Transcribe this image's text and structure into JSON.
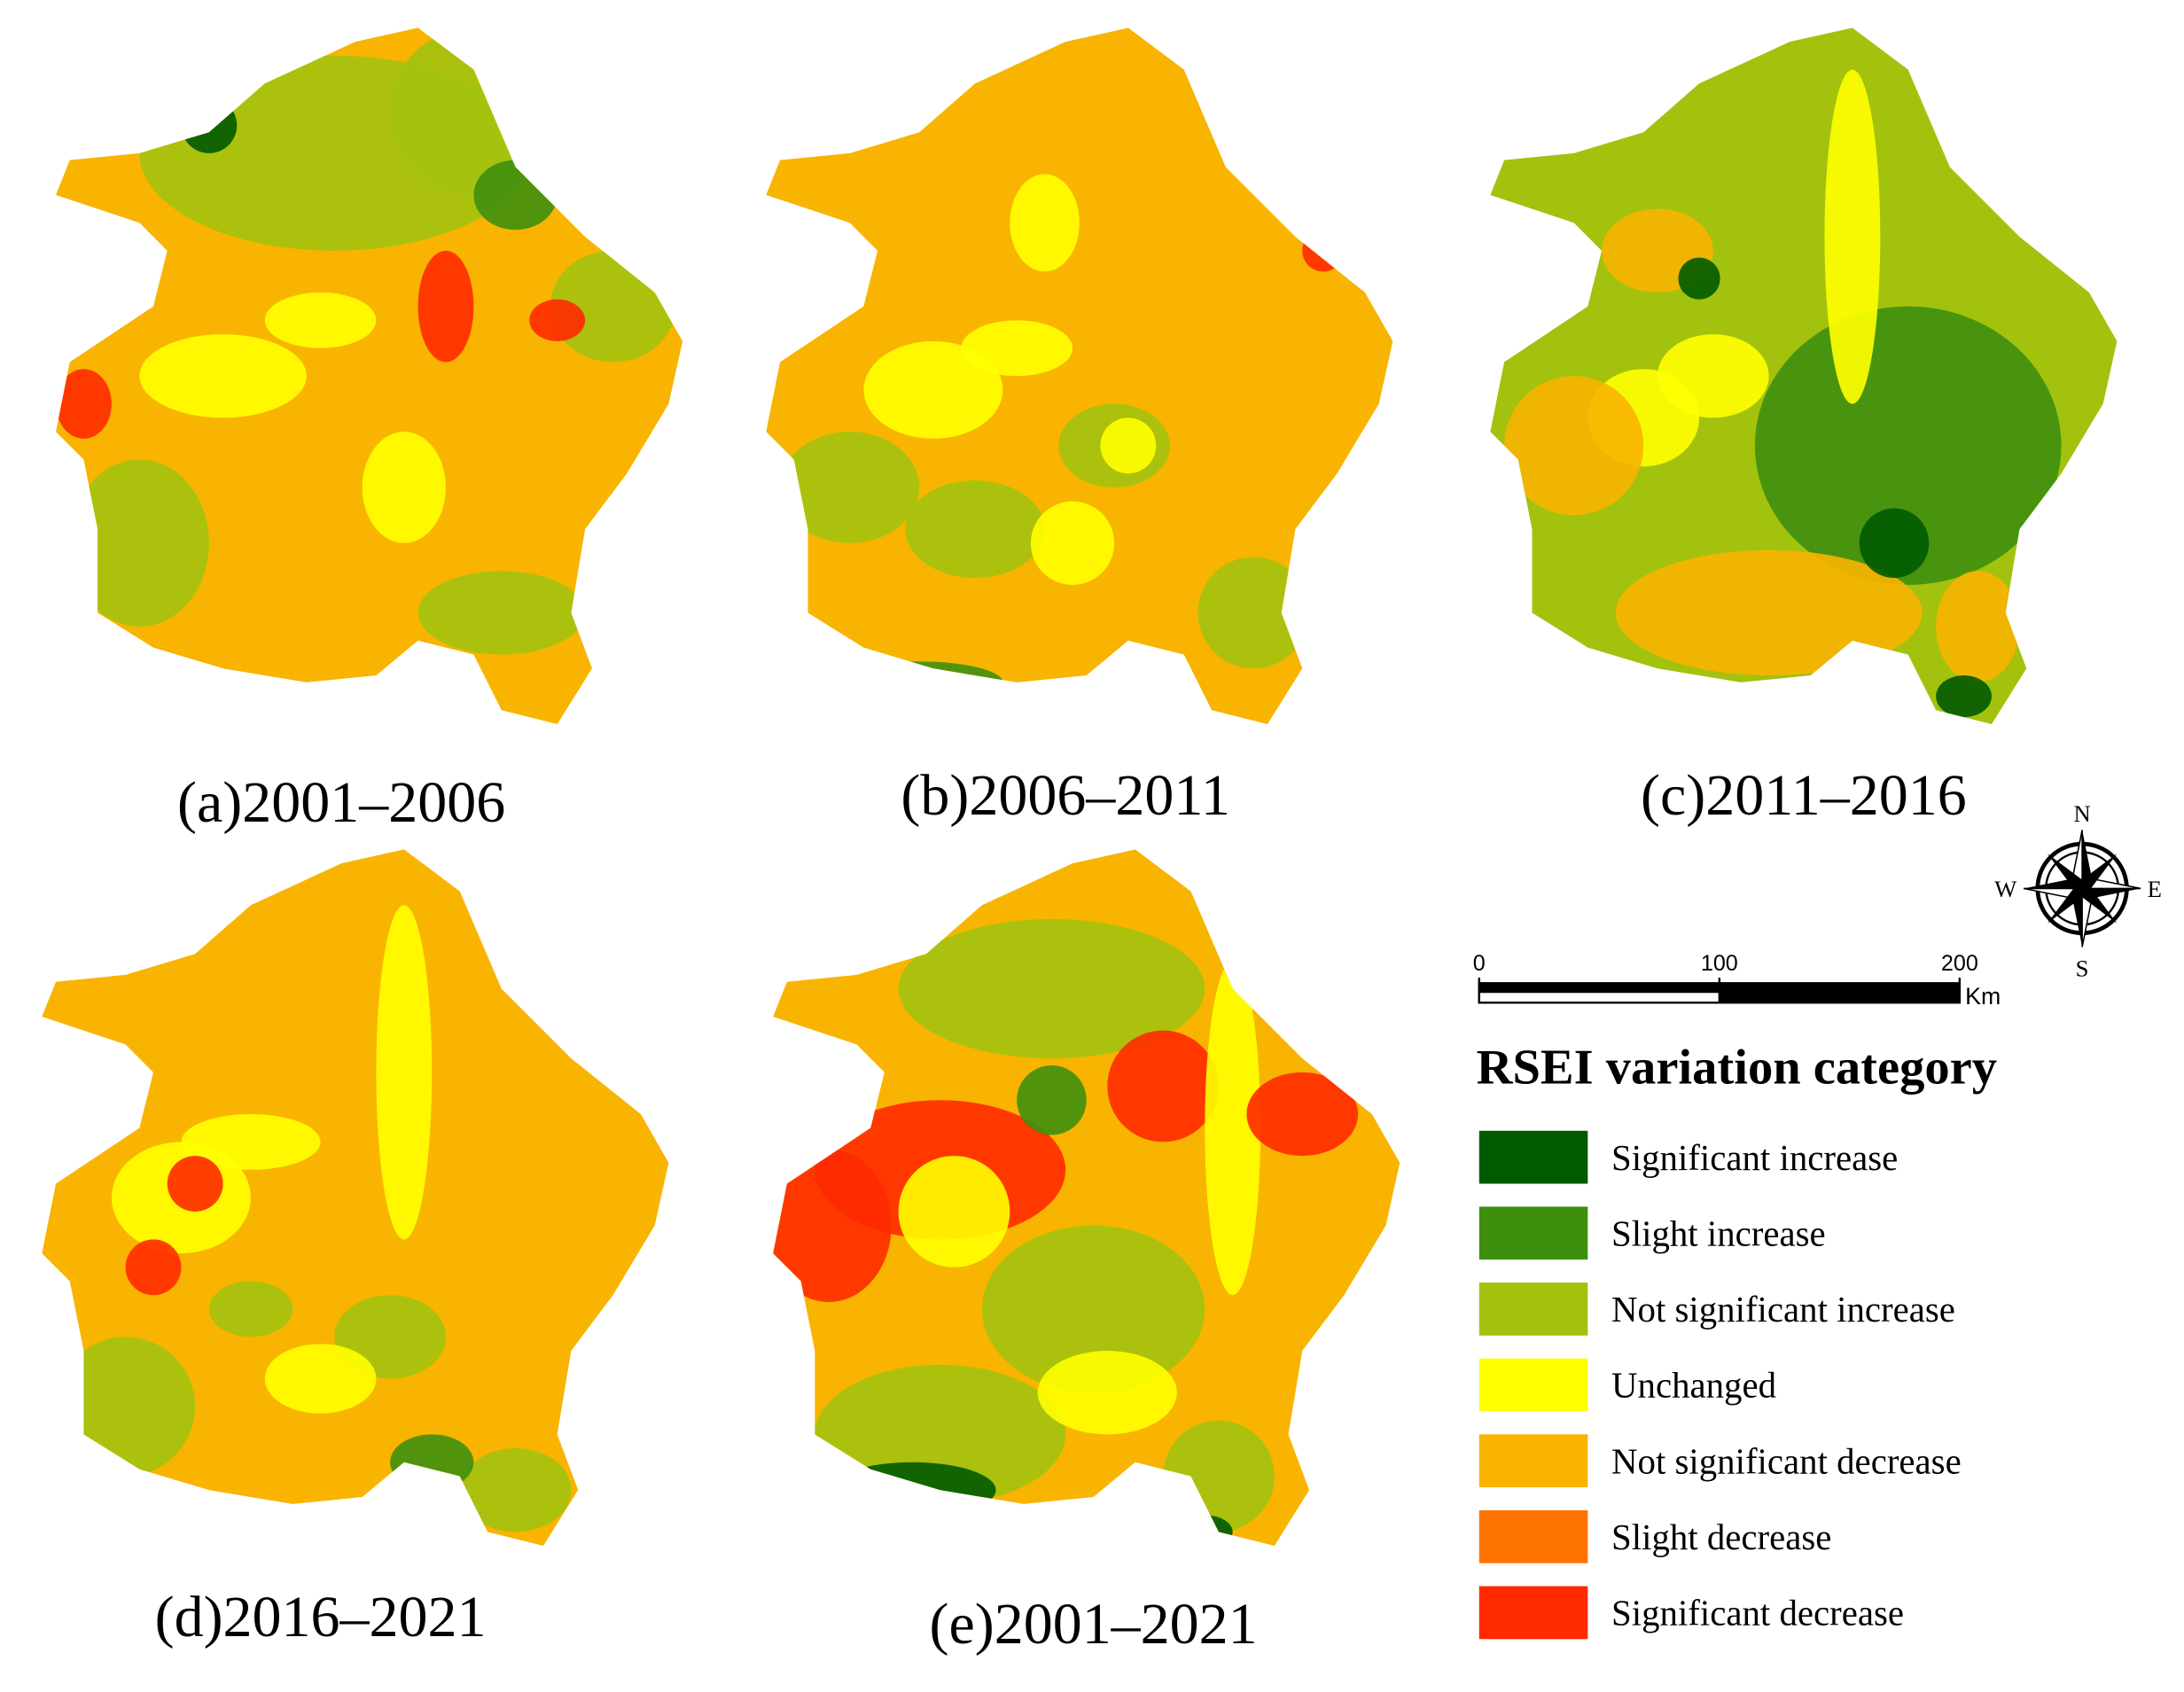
{
  "panels": [
    {
      "label": "(a)2001–2006"
    },
    {
      "label": "(b)2006–2011"
    },
    {
      "label": "(c)2011–2016"
    },
    {
      "label": "(d)2016–2021"
    },
    {
      "label": "(e)2001–2021"
    }
  ],
  "compass": {
    "north": "N",
    "east": "E",
    "south": "S",
    "west": "W"
  },
  "scale_bar": {
    "ticks": [
      0,
      100,
      200
    ],
    "unit": "Km"
  },
  "legend": {
    "title": "RSEI variation category",
    "items": [
      {
        "label": "Significant increase",
        "color": "#005a00"
      },
      {
        "label": "Slight increase",
        "color": "#3f8f0e"
      },
      {
        "label": "Not significant increase",
        "color": "#a3c20e"
      },
      {
        "label": "Unchanged",
        "color": "#ffff00"
      },
      {
        "label": "Not significant decrease",
        "color": "#f8b400"
      },
      {
        "label": "Slight decrease",
        "color": "#ff7300"
      },
      {
        "label": "Significant decrease",
        "color": "#ff2a00"
      }
    ]
  }
}
